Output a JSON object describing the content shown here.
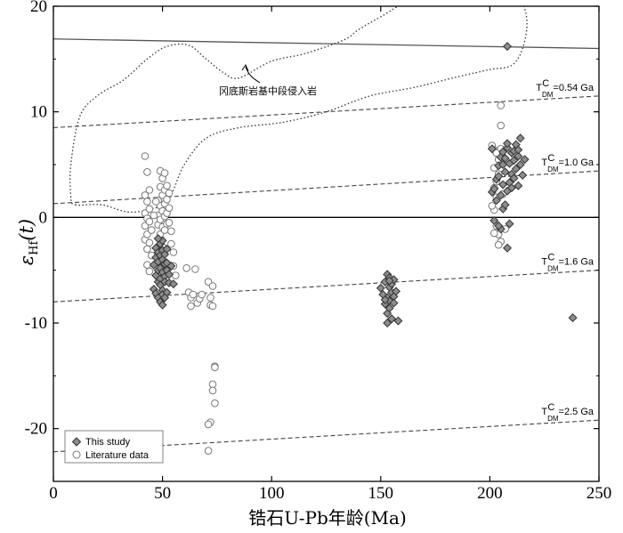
{
  "chart_data": {
    "type": "scatter",
    "xlabel": "锆石U-Pb年龄(Ma)",
    "ylabel_symbol": "ε",
    "ylabel_sub": "Hf",
    "ylabel_suffix": "(t)",
    "xlim": [
      0,
      250
    ],
    "ylim": [
      -25,
      20
    ],
    "xticks": [
      0,
      50,
      100,
      150,
      200,
      250
    ],
    "yticks": [
      -20,
      -10,
      0,
      10,
      20
    ],
    "legend_position": "bottom-left",
    "colors": {
      "this_study": "#8c8c8c",
      "literature": "#ffffff",
      "stroke": "#333333"
    },
    "zero_line": 0,
    "reference_lines": [
      {
        "label": "T",
        "sup": "C",
        "sub": "DM",
        "value": "=0.54 Ga",
        "x1": 0,
        "y1": 8.5,
        "x2": 250,
        "y2": 11.5,
        "dashed": true
      },
      {
        "label": "T",
        "sup": "C",
        "sub": "DM",
        "value": "=1.0 Ga",
        "x1": 0,
        "y1": 1.3,
        "x2": 250,
        "y2": 4.4,
        "dashed": true
      },
      {
        "label": "T",
        "sup": "C",
        "sub": "DM",
        "value": "=1.6 Ga",
        "x1": 0,
        "y1": -8.0,
        "x2": 250,
        "y2": -5.0,
        "dashed": true
      },
      {
        "label": "T",
        "sup": "C",
        "sub": "DM",
        "value": "=2.5 Ga",
        "x1": 0,
        "y1": -22.2,
        "x2": 250,
        "y2": -19.2,
        "dashed": true
      }
    ],
    "depleted_mantle_line": {
      "x1": 0,
      "y1": 16.9,
      "x2": 250,
      "y2": 16.0
    },
    "region": {
      "label": "冈底斯岩基中段侵入岩",
      "outline": [
        [
          10,
          1.2
        ],
        [
          22,
          1.2
        ],
        [
          35,
          0.5
        ],
        [
          48,
          1.0
        ],
        [
          54,
          2.2
        ],
        [
          60,
          5.0
        ],
        [
          70,
          7.5
        ],
        [
          85,
          8.5
        ],
        [
          105,
          9.0
        ],
        [
          125,
          10.0
        ],
        [
          145,
          11.5
        ],
        [
          165,
          12.3
        ],
        [
          185,
          13.3
        ],
        [
          200,
          14.0
        ],
        [
          210,
          14.4
        ],
        [
          215,
          16.0
        ],
        [
          217,
          18.5
        ],
        [
          214,
          20.5
        ],
        [
          205,
          21.0
        ],
        [
          185,
          21.5
        ],
        [
          165,
          20.7
        ],
        [
          150,
          19.0
        ],
        [
          140,
          17.8
        ],
        [
          133,
          16.8
        ],
        [
          115,
          15.5
        ],
        [
          100,
          14.8
        ],
        [
          85,
          13.2
        ],
        [
          78,
          13.7
        ],
        [
          70,
          15.0
        ],
        [
          62,
          16.3
        ],
        [
          52,
          16.2
        ],
        [
          43,
          15.0
        ],
        [
          32,
          13.0
        ],
        [
          20,
          11.5
        ],
        [
          12,
          9.5
        ],
        [
          8,
          5.0
        ],
        [
          8,
          2.0
        ]
      ]
    },
    "series": [
      {
        "name": "This study",
        "marker": "diamond",
        "points": [
          [
            46,
            -6.8
          ],
          [
            46,
            -4.5
          ],
          [
            47,
            -7.2
          ],
          [
            47,
            -5.5
          ],
          [
            47,
            -3.8
          ],
          [
            47,
            -2.9
          ],
          [
            48,
            -6.1
          ],
          [
            48,
            -5.0
          ],
          [
            48,
            -4.2
          ],
          [
            48,
            -7.6
          ],
          [
            48,
            -3.3
          ],
          [
            49,
            -5.8
          ],
          [
            49,
            -4.8
          ],
          [
            49,
            -6.4
          ],
          [
            49,
            -3.6
          ],
          [
            49,
            -2.5
          ],
          [
            49,
            -8.0
          ],
          [
            50,
            -5.2
          ],
          [
            50,
            -4.0
          ],
          [
            50,
            -6.9
          ],
          [
            50,
            -3.1
          ],
          [
            50,
            -2.2
          ],
          [
            50,
            -7.3
          ],
          [
            51,
            -5.6
          ],
          [
            51,
            -4.4
          ],
          [
            51,
            -6.1
          ],
          [
            51,
            -3.5
          ],
          [
            52,
            -5.0
          ],
          [
            52,
            -4.3
          ],
          [
            52,
            -7.1
          ],
          [
            53,
            -5.4
          ],
          [
            53,
            -6.2
          ],
          [
            54,
            -4.6
          ],
          [
            55,
            -6.3
          ],
          [
            48,
            -2.0
          ],
          [
            50,
            -8.3
          ],
          [
            52,
            -3.0
          ],
          [
            51,
            -7.6
          ],
          [
            150,
            -6.7
          ],
          [
            151,
            -7.3
          ],
          [
            152,
            -8.2
          ],
          [
            152,
            -6.1
          ],
          [
            153,
            -7.6
          ],
          [
            153,
            -5.4
          ],
          [
            153,
            -9.1
          ],
          [
            154,
            -6.6
          ],
          [
            154,
            -7.9
          ],
          [
            154,
            -5.7
          ],
          [
            154,
            -8.6
          ],
          [
            155,
            -7.1
          ],
          [
            155,
            -6.3
          ],
          [
            155,
            -9.6
          ],
          [
            156,
            -7.5
          ],
          [
            156,
            -5.9
          ],
          [
            156,
            -8.1
          ],
          [
            157,
            -7.0
          ],
          [
            153,
            -10.0
          ],
          [
            158,
            -9.8
          ],
          [
            154,
            -6.0
          ],
          [
            152,
            -7.8
          ],
          [
            201,
            2.4
          ],
          [
            202,
            -0.3
          ],
          [
            203,
            1.6
          ],
          [
            203,
            3.6
          ],
          [
            204,
            4.9
          ],
          [
            205,
            2.1
          ],
          [
            205,
            5.7
          ],
          [
            205,
            -1.1
          ],
          [
            206,
            3.1
          ],
          [
            206,
            6.2
          ],
          [
            206,
            0.8
          ],
          [
            207,
            4.3
          ],
          [
            207,
            5.6
          ],
          [
            207,
            1.2
          ],
          [
            208,
            2.5
          ],
          [
            208,
            6.6
          ],
          [
            209,
            3.3
          ],
          [
            209,
            5.1
          ],
          [
            209,
            -0.6
          ],
          [
            210,
            4.1
          ],
          [
            210,
            6.1
          ],
          [
            210,
            2.8
          ],
          [
            211,
            5.4
          ],
          [
            211,
            3.7
          ],
          [
            212,
            6.9
          ],
          [
            212,
            4.6
          ],
          [
            213,
            5.8
          ],
          [
            213,
            3.0
          ],
          [
            214,
            7.5
          ],
          [
            214,
            5.0
          ],
          [
            215,
            4.0
          ],
          [
            216,
            5.5
          ],
          [
            208,
            -2.9
          ],
          [
            204,
            3.9
          ],
          [
            211,
            6.3
          ],
          [
            208,
            7.0
          ],
          [
            206,
            5.0
          ],
          [
            213,
            6.4
          ],
          [
            202,
            2.7
          ],
          [
            201,
            6.5
          ],
          [
            204,
            -0.8
          ],
          [
            208,
            16.2
          ],
          [
            238,
            -9.5
          ]
        ]
      },
      {
        "name": "Literature data",
        "marker": "circle",
        "points": [
          [
            42,
            5.8
          ],
          [
            42,
            2.1
          ],
          [
            42,
            0.4
          ],
          [
            42,
            -0.8
          ],
          [
            42,
            -2.1
          ],
          [
            43,
            4.3
          ],
          [
            43,
            1.5
          ],
          [
            43,
            -0.1
          ],
          [
            43,
            -1.6
          ],
          [
            43,
            -3.0
          ],
          [
            43,
            -4.5
          ],
          [
            44,
            2.6
          ],
          [
            44,
            0.8
          ],
          [
            44,
            -0.4
          ],
          [
            44,
            -2.4
          ],
          [
            44,
            -5.1
          ],
          [
            45,
            -1.2
          ],
          [
            45,
            -3.6
          ],
          [
            48,
            1.6
          ],
          [
            48,
            0.2
          ],
          [
            48,
            -0.7
          ],
          [
            49,
            4.4
          ],
          [
            49,
            2.9
          ],
          [
            49,
            1.1
          ],
          [
            49,
            -0.2
          ],
          [
            49,
            -1.6
          ],
          [
            50,
            3.7
          ],
          [
            50,
            2.1
          ],
          [
            50,
            0.6
          ],
          [
            50,
            -0.9
          ],
          [
            50,
            -2.8
          ],
          [
            51,
            4.2
          ],
          [
            51,
            2.6
          ],
          [
            51,
            1.3
          ],
          [
            51,
            0.1
          ],
          [
            51,
            -1.2
          ],
          [
            52,
            3.0
          ],
          [
            52,
            1.7
          ],
          [
            52,
            0.4
          ],
          [
            52,
            -0.6
          ],
          [
            53,
            2.3
          ],
          [
            53,
            0.9
          ],
          [
            53,
            -0.5
          ],
          [
            54,
            -1.3
          ],
          [
            54,
            -2.5
          ],
          [
            55,
            -3.3
          ],
          [
            46,
            0.2
          ],
          [
            47,
            1.5
          ],
          [
            55,
            -4.6
          ],
          [
            56,
            -5.5
          ],
          [
            61,
            -4.8
          ],
          [
            62,
            -7.1
          ],
          [
            63,
            -7.6
          ],
          [
            63,
            -8.4
          ],
          [
            64,
            -7.3
          ],
          [
            65,
            -4.9
          ],
          [
            66,
            -8.1
          ],
          [
            67,
            -7.7
          ],
          [
            68,
            -7.3
          ],
          [
            71,
            -6.1
          ],
          [
            72,
            -7.6
          ],
          [
            72,
            -8.3
          ],
          [
            73,
            -6.5
          ],
          [
            73,
            -8.4
          ],
          [
            74,
            -14.1
          ],
          [
            74,
            -14.2
          ],
          [
            73,
            -15.8
          ],
          [
            73,
            -16.4
          ],
          [
            74,
            -17.6
          ],
          [
            72,
            -19.4
          ],
          [
            71,
            -19.6
          ],
          [
            71,
            -22.1
          ],
          [
            201,
            6.8
          ],
          [
            202,
            6.4
          ],
          [
            202,
            4.7
          ],
          [
            202,
            2.8
          ],
          [
            202,
            0.7
          ],
          [
            203,
            3.4
          ],
          [
            203,
            1.9
          ],
          [
            203,
            -0.8
          ],
          [
            204,
            5.5
          ],
          [
            204,
            4.1
          ],
          [
            204,
            -1.6
          ],
          [
            205,
            8.7
          ],
          [
            205,
            10.6
          ],
          [
            205,
            6.5
          ],
          [
            205,
            -2.3
          ],
          [
            206,
            2.2
          ],
          [
            207,
            -1.1
          ],
          [
            201,
            1.1
          ],
          [
            202,
            -1.5
          ],
          [
            204,
            -2.6
          ],
          [
            203,
            6.1
          ]
        ]
      }
    ]
  }
}
